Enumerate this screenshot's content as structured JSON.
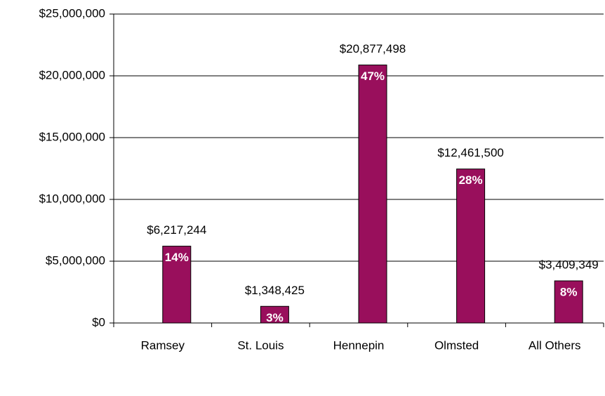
{
  "chart_data": {
    "type": "bar",
    "categories": [
      "Ramsey",
      "St. Louis",
      "Hennepin",
      "Olmsted",
      "All Others"
    ],
    "values": [
      6217244,
      1348425,
      20877498,
      12461500,
      3409349
    ],
    "value_labels": [
      "$6,217,244",
      "$1,348,425",
      "$20,877,498",
      "$12,461,500",
      "$3,409,349"
    ],
    "percent_labels": [
      "14%",
      "3%",
      "47%",
      "28%",
      "8%"
    ],
    "color": "#990f5c",
    "ylim": [
      0,
      25000000
    ],
    "yticks": [
      {
        "value": 0,
        "label": "$0"
      },
      {
        "value": 5000000,
        "label": "$5,000,000"
      },
      {
        "value": 10000000,
        "label": "$10,000,000"
      },
      {
        "value": 15000000,
        "label": "$15,000,000"
      },
      {
        "value": 20000000,
        "label": "$20,000,000"
      },
      {
        "value": 25000000,
        "label": "$25,000,000"
      }
    ],
    "grid": true
  }
}
